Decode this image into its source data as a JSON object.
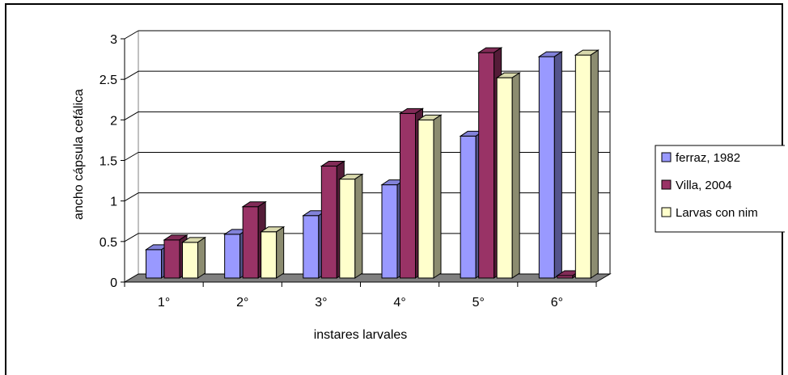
{
  "chart_data": {
    "type": "bar",
    "title": "",
    "xlabel": "instares larvales",
    "ylabel": "ancho cápsula cefálica",
    "ylim": [
      0,
      3
    ],
    "yticks": [
      "0",
      "0.5",
      "1",
      "1.5",
      "2",
      "2.5",
      "3"
    ],
    "categories": [
      "1°",
      "2°",
      "3°",
      "4°",
      "5°",
      "6°"
    ],
    "series": [
      {
        "name": "ferraz, 1982",
        "color": "#9999ff",
        "values": [
          0.35,
          0.54,
          0.77,
          1.15,
          1.75,
          2.73
        ]
      },
      {
        "name": "Villa, 2004",
        "color": "#993366",
        "values": [
          0.47,
          0.88,
          1.38,
          2.03,
          2.78,
          0.03
        ]
      },
      {
        "name": "Larvas con nim",
        "color": "#ffffcc",
        "values": [
          0.44,
          0.57,
          1.22,
          1.95,
          2.47,
          2.75
        ]
      }
    ],
    "legend_position": "right",
    "grid": true
  }
}
